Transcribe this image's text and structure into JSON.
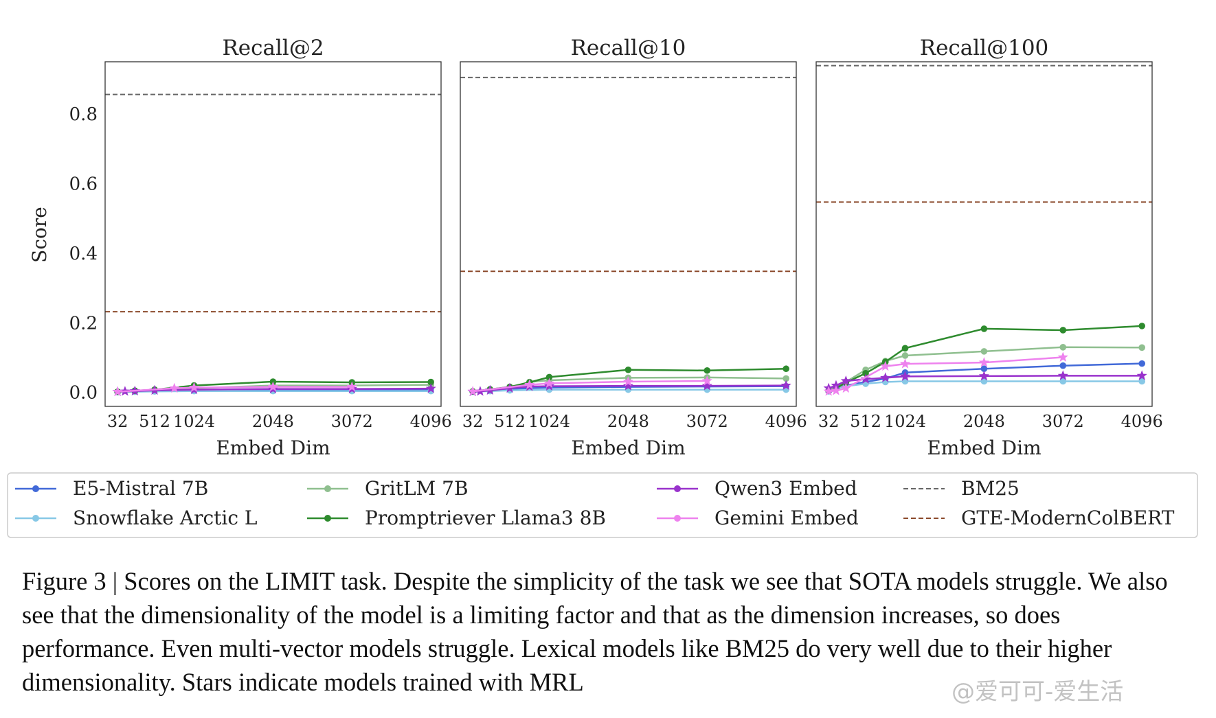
{
  "chart_data": {
    "type": "line",
    "ylabel": "Score",
    "xlabel": "Embed Dim",
    "ylim": [
      -0.04,
      0.95
    ],
    "xlim": [
      -130,
      4228
    ],
    "yticks": [
      0.0,
      0.2,
      0.4,
      0.6,
      0.8
    ],
    "xticks": [
      32,
      512,
      1024,
      2048,
      3072,
      4096
    ],
    "grid": false,
    "legend_position": "bottom",
    "panels": [
      {
        "title": "Recall@2",
        "baselines": [
          {
            "name": "BM25",
            "value": 0.856,
            "color": "#666666"
          },
          {
            "name": "GTE-ModernColBERT",
            "value": 0.232,
            "color": "#8b4a2b"
          }
        ],
        "series": [
          {
            "name": "E5-Mistral 7B",
            "x": [
              32,
              256,
              512,
              1024,
              2048,
              3072,
              4096
            ],
            "y": [
              0.001,
              0.003,
              0.004,
              0.006,
              0.007,
              0.007,
              0.007
            ]
          },
          {
            "name": "Snowflake Arctic L",
            "x": [
              32,
              256,
              512,
              1024,
              2048,
              3072,
              4096
            ],
            "y": [
              0.001,
              0.002,
              0.003,
              0.004,
              0.004,
              0.004,
              0.004
            ]
          },
          {
            "name": "GritLM 7B",
            "x": [
              32,
              256,
              512,
              1024,
              2048,
              3072,
              4096
            ],
            "y": [
              0.002,
              0.004,
              0.007,
              0.012,
              0.02,
              0.02,
              0.022
            ]
          },
          {
            "name": "Promptriever Llama3 8B",
            "x": [
              32,
              256,
              512,
              1024,
              2048,
              3072,
              4096
            ],
            "y": [
              0.002,
              0.005,
              0.008,
              0.02,
              0.031,
              0.029,
              0.03
            ]
          },
          {
            "name": "Qwen3 Embed",
            "x": [
              32,
              128,
              256,
              512,
              1024,
              2048,
              3072,
              4096
            ],
            "y": [
              0.002,
              0.003,
              0.004,
              0.006,
              0.008,
              0.01,
              0.01,
              0.011
            ]
          },
          {
            "name": "Gemini Embed",
            "x": [
              32,
              768,
              1024,
              2048,
              3072
            ],
            "y": [
              0.002,
              0.012,
              0.014,
              0.016,
              0.016
            ]
          }
        ]
      },
      {
        "title": "Recall@10",
        "baselines": [
          {
            "name": "BM25",
            "value": 0.905,
            "color": "#666666"
          },
          {
            "name": "GTE-ModernColBERT",
            "value": 0.348,
            "color": "#8b4a2b"
          }
        ],
        "series": [
          {
            "name": "E5-Mistral 7B",
            "x": [
              32,
              256,
              512,
              1024,
              2048,
              3072,
              4096
            ],
            "y": [
              0.002,
              0.006,
              0.01,
              0.014,
              0.016,
              0.017,
              0.018
            ]
          },
          {
            "name": "Snowflake Arctic L",
            "x": [
              32,
              256,
              512,
              1024,
              2048,
              3072,
              4096
            ],
            "y": [
              0.002,
              0.004,
              0.006,
              0.008,
              0.008,
              0.008,
              0.008
            ]
          },
          {
            "name": "GritLM 7B",
            "x": [
              32,
              256,
              512,
              768,
              1024,
              2048,
              3072,
              4096
            ],
            "y": [
              0.003,
              0.008,
              0.014,
              0.03,
              0.035,
              0.042,
              0.043,
              0.04
            ]
          },
          {
            "name": "Promptriever Llama3 8B",
            "x": [
              32,
              256,
              512,
              768,
              1024,
              2048,
              3072,
              4096
            ],
            "y": [
              0.003,
              0.009,
              0.016,
              0.029,
              0.044,
              0.065,
              0.063,
              0.068
            ]
          },
          {
            "name": "Qwen3 Embed",
            "x": [
              32,
              128,
              256,
              512,
              768,
              1024,
              2048,
              3072,
              4096
            ],
            "y": [
              0.002,
              0.003,
              0.006,
              0.012,
              0.017,
              0.018,
              0.019,
              0.019,
              0.02
            ]
          },
          {
            "name": "Gemini Embed",
            "x": [
              32,
              768,
              1024,
              2048,
              3072
            ],
            "y": [
              0.003,
              0.022,
              0.026,
              0.031,
              0.033
            ]
          }
        ]
      },
      {
        "title": "Recall@100",
        "baselines": [
          {
            "name": "BM25",
            "value": 0.939,
            "color": "#666666"
          },
          {
            "name": "GTE-ModernColBERT",
            "value": 0.547,
            "color": "#8b4a2b"
          }
        ],
        "series": [
          {
            "name": "E5-Mistral 7B",
            "x": [
              32,
              128,
              256,
              512,
              768,
              1024,
              2048,
              3072,
              4096
            ],
            "y": [
              0.005,
              0.01,
              0.02,
              0.03,
              0.04,
              0.057,
              0.068,
              0.077,
              0.083
            ]
          },
          {
            "name": "Snowflake Arctic L",
            "x": [
              32,
              128,
              256,
              512,
              768,
              1024,
              2048,
              3072,
              4096
            ],
            "y": [
              0.003,
              0.01,
              0.018,
              0.025,
              0.03,
              0.032,
              0.032,
              0.032,
              0.032
            ]
          },
          {
            "name": "GritLM 7B",
            "x": [
              32,
              128,
              256,
              512,
              768,
              1024,
              2048,
              3072,
              4096
            ],
            "y": [
              0.005,
              0.015,
              0.03,
              0.065,
              0.09,
              0.106,
              0.118,
              0.13,
              0.129
            ]
          },
          {
            "name": "Promptriever Llama3 8B",
            "x": [
              32,
              128,
              256,
              512,
              768,
              1024,
              2048,
              3072,
              4096
            ],
            "y": [
              0.005,
              0.012,
              0.028,
              0.055,
              0.088,
              0.127,
              0.183,
              0.179,
              0.191
            ]
          },
          {
            "name": "Qwen3 Embed",
            "x": [
              32,
              128,
              256,
              512,
              768,
              1024,
              2048,
              3072,
              4096
            ],
            "y": [
              0.012,
              0.02,
              0.033,
              0.038,
              0.042,
              0.046,
              0.047,
              0.048,
              0.048
            ]
          },
          {
            "name": "Gemini Embed",
            "x": [
              32,
              128,
              256,
              768,
              1024,
              2048,
              3072
            ],
            "y": [
              0.003,
              0.005,
              0.012,
              0.075,
              0.082,
              0.086,
              0.101
            ]
          }
        ]
      }
    ]
  },
  "legend": {
    "entries": [
      {
        "name": "E5-Mistral 7B",
        "color": "#4169d8",
        "style": "solid",
        "marker": "circle"
      },
      {
        "name": "Snowflake Arctic L",
        "color": "#87c8e6",
        "style": "solid",
        "marker": "circle"
      },
      {
        "name": "GritLM 7B",
        "color": "#8fbf8f",
        "style": "solid",
        "marker": "circle"
      },
      {
        "name": "Promptriever Llama3 8B",
        "color": "#2e8b2e",
        "style": "solid",
        "marker": "circle"
      },
      {
        "name": "Qwen3 Embed",
        "color": "#9932cc",
        "style": "solid",
        "marker": "star"
      },
      {
        "name": "Gemini Embed",
        "color": "#ee82ee",
        "style": "solid",
        "marker": "star"
      },
      {
        "name": "BM25",
        "color": "#666666",
        "style": "dashed",
        "marker": "none"
      },
      {
        "name": "GTE-ModernColBERT",
        "color": "#8b4a2b",
        "style": "dashed",
        "marker": "none"
      }
    ]
  },
  "caption": "Figure 3 | Scores on the LIMIT task. Despite the simplicity of the task we see that SOTA models struggle. We also see that the dimensionality of the model is a limiting factor and that as the dimension increases, so does performance. Even multi-vector models struggle. Lexical models like BM25 do very well due to their higher dimensionality. Stars indicate models trained with MRL",
  "watermark": "@爱可可-爱生活"
}
